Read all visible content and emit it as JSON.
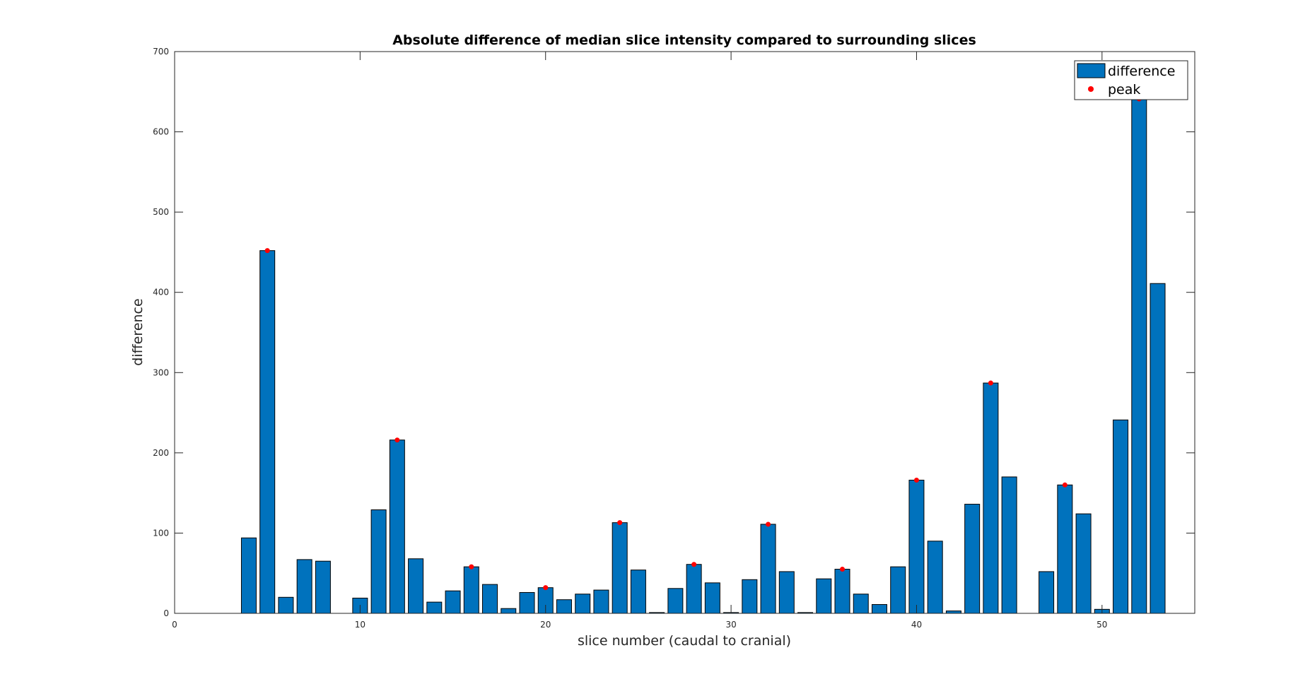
{
  "chart_data": {
    "type": "bar",
    "title": "Absolute difference of median slice intensity compared to surrounding slices",
    "xlabel": "slice number (caudal to cranial)",
    "ylabel": "difference",
    "xlim": [
      0,
      55
    ],
    "ylim": [
      0,
      700
    ],
    "xticks": [
      0,
      10,
      20,
      30,
      40,
      50
    ],
    "yticks": [
      0,
      100,
      200,
      300,
      400,
      500,
      600,
      700
    ],
    "grid": false,
    "legend_position": "top-right",
    "colors": {
      "bar": "#0072BD",
      "peak": "#FF0000"
    },
    "series": [
      {
        "name": "difference",
        "x": [
          4,
          5,
          6,
          7,
          8,
          10,
          11,
          12,
          13,
          14,
          15,
          16,
          17,
          18,
          19,
          20,
          21,
          22,
          23,
          24,
          25,
          26,
          27,
          28,
          29,
          30,
          31,
          32,
          33,
          34,
          35,
          36,
          37,
          38,
          39,
          40,
          41,
          42,
          43,
          44,
          45,
          47,
          48,
          49,
          50,
          51,
          52,
          53
        ],
        "values": [
          94,
          452,
          20,
          67,
          65,
          19,
          129,
          216,
          68,
          14,
          28,
          58,
          36,
          6,
          26,
          32,
          17,
          24,
          29,
          113,
          54,
          1,
          31,
          61,
          38,
          1,
          42,
          111,
          52,
          1,
          43,
          55,
          24,
          11,
          58,
          166,
          90,
          3,
          136,
          287,
          170,
          52,
          160,
          124,
          5,
          241,
          641,
          411
        ]
      },
      {
        "name": "peak",
        "x": [
          5,
          12,
          16,
          20,
          24,
          28,
          32,
          36,
          40,
          44,
          48,
          52
        ],
        "values": [
          452,
          216,
          58,
          32,
          113,
          61,
          111,
          55,
          166,
          287,
          160,
          641
        ]
      }
    ]
  }
}
